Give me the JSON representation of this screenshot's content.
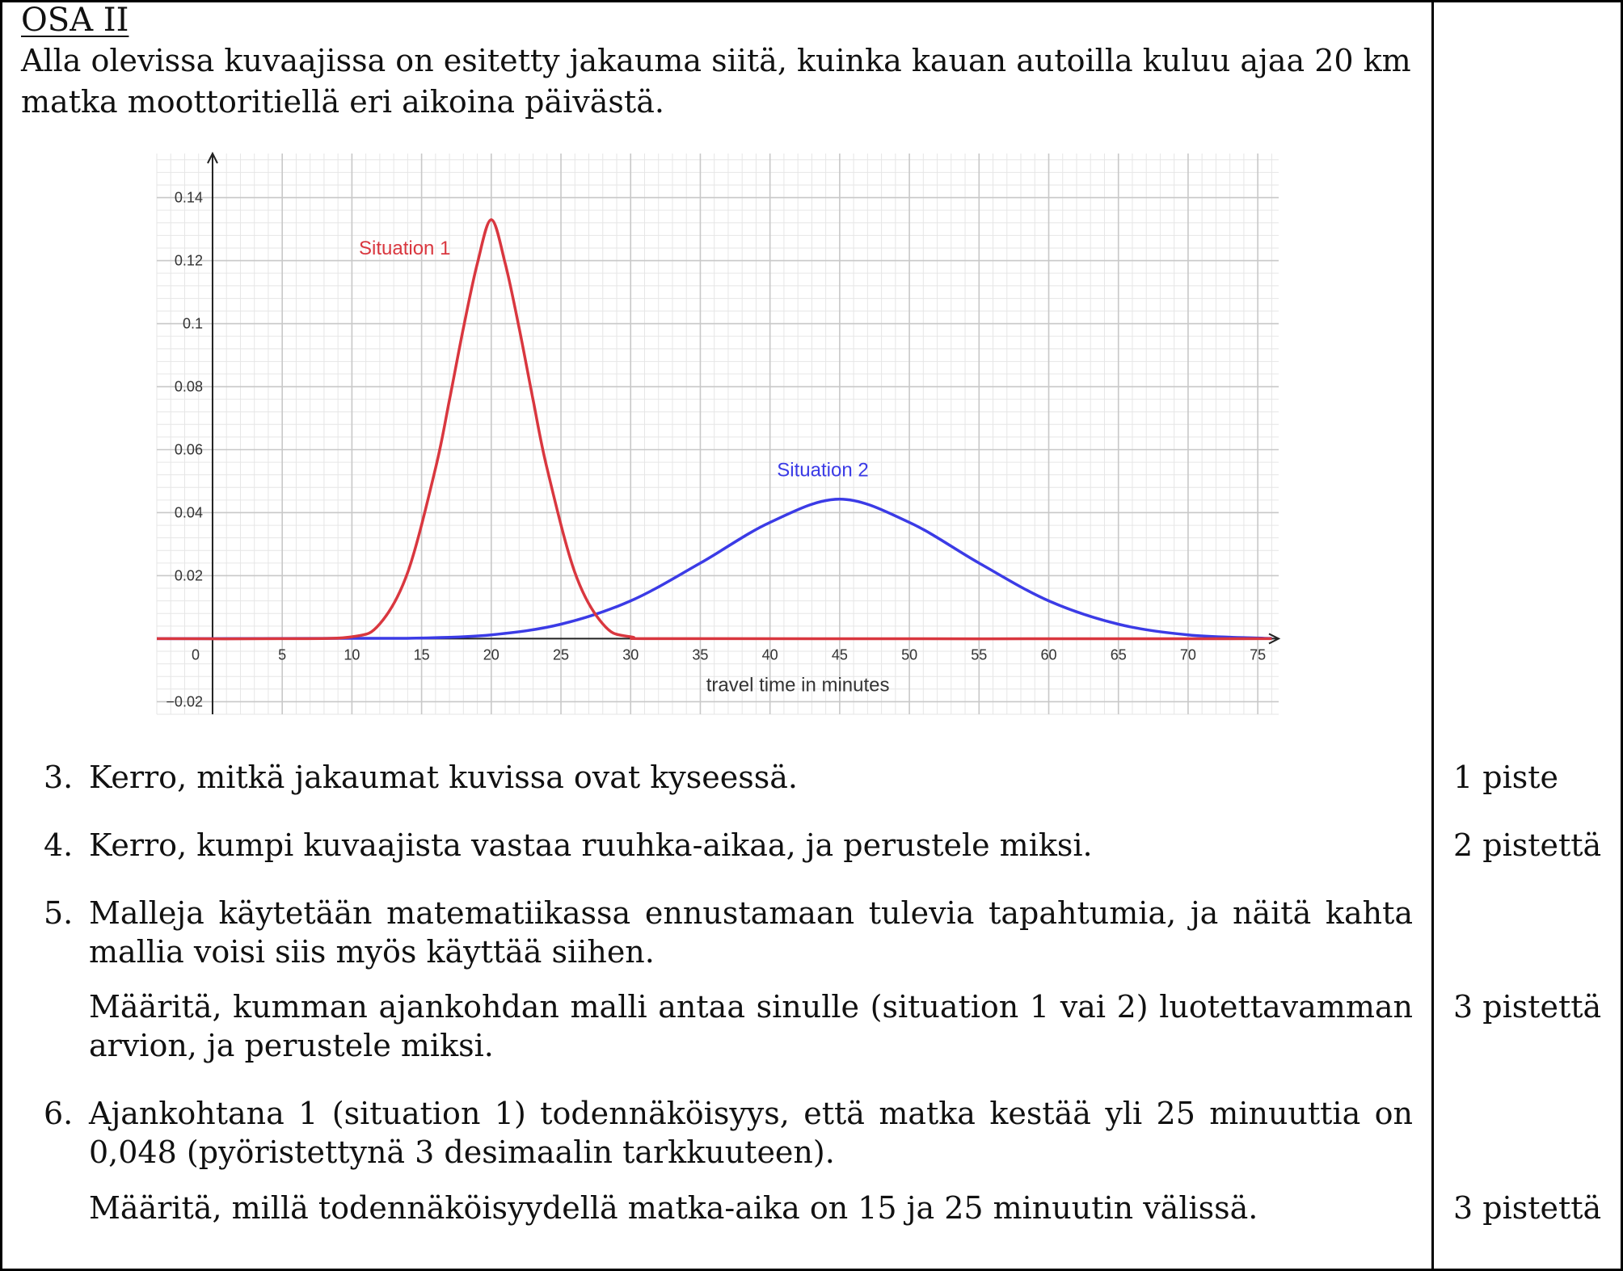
{
  "section_title": "OSA II",
  "intro": "Alla olevissa kuvaajissa on esitetty jakauma siitä, kuinka kauan autoilla kuluu ajaa 20 km matka moottoritiellä eri aikoina päivästä.",
  "chart_data": {
    "type": "line",
    "xlabel": "travel time in minutes",
    "ylabel": "",
    "xlim": [
      -4,
      76.5
    ],
    "ylim": [
      -0.024,
      0.154
    ],
    "x_ticks": [
      5,
      10,
      15,
      20,
      25,
      30,
      35,
      40,
      45,
      50,
      55,
      60,
      65,
      70,
      75
    ],
    "y_ticks": [
      0.02,
      0.04,
      0.06,
      0.08,
      0.1,
      0.12,
      0.14,
      -0.02
    ],
    "x_tick_labels": [
      "5",
      "10",
      "15",
      "20",
      "25",
      "30",
      "35",
      "40",
      "45",
      "50",
      "55",
      "60",
      "65",
      "70",
      "75"
    ],
    "y_tick_labels": [
      "0.02",
      "0.04",
      "0.06",
      "0.08",
      "0.1",
      "0.12",
      "0.14",
      "−0.02"
    ],
    "origin_label": "0",
    "grid": true,
    "series": [
      {
        "name": "Situation 1",
        "color": "#d9373f",
        "x": [
          -4,
          5,
          10,
          12,
          14,
          16,
          17,
          18,
          19,
          20,
          21,
          22,
          23,
          24,
          26,
          28,
          30,
          35,
          76
        ],
        "y": [
          0,
          0,
          0.0006,
          0.0047,
          0.021,
          0.0541,
          0.0758,
          0.0986,
          0.1191,
          0.133,
          0.1191,
          0.0986,
          0.0758,
          0.0541,
          0.021,
          0.0047,
          0.0006,
          0,
          0
        ]
      },
      {
        "name": "Situation 2",
        "color": "#3b3be6",
        "x": [
          -4,
          10,
          15,
          20,
          25,
          30,
          35,
          40,
          45,
          50,
          55,
          60,
          65,
          70,
          75,
          76
        ],
        "y": [
          0,
          0.0001,
          0.0002,
          0.0012,
          0.0046,
          0.012,
          0.024,
          0.0369,
          0.0443,
          0.0369,
          0.024,
          0.012,
          0.0046,
          0.0012,
          0.0002,
          0.0001
        ]
      }
    ]
  },
  "questions": [
    {
      "num": "3.",
      "paragraphs": [
        "Kerro, mitkä jakaumat kuvissa ovat kyseessä."
      ],
      "points": "1 piste"
    },
    {
      "num": "4.",
      "paragraphs": [
        "Kerro, kumpi kuvaajista vastaa ruuhka-aikaa, ja perustele miksi."
      ],
      "points": "2 pistettä"
    },
    {
      "num": "5.",
      "paragraphs": [
        "Malleja käytetään matematiikassa ennustamaan tulevia tapahtumia, ja näitä kahta mallia voisi siis myös käyttää siihen.",
        "Määritä, kumman ajankohdan malli antaa sinulle (situation 1 vai 2) luotettavamman arvion, ja perustele miksi."
      ],
      "points": "3 pistettä"
    },
    {
      "num": "6.",
      "paragraphs": [
        "Ajankohtana 1 (situation 1) todennäköisyys, että matka kestää yli 25 minuuttia on 0,048 (pyöristettynä 3 desimaalin tarkkuuteen).",
        "Määritä, millä todennäköisyydellä matka-aika on 15 ja 25 minuutin välissä."
      ],
      "points": "3 pistettä"
    }
  ]
}
